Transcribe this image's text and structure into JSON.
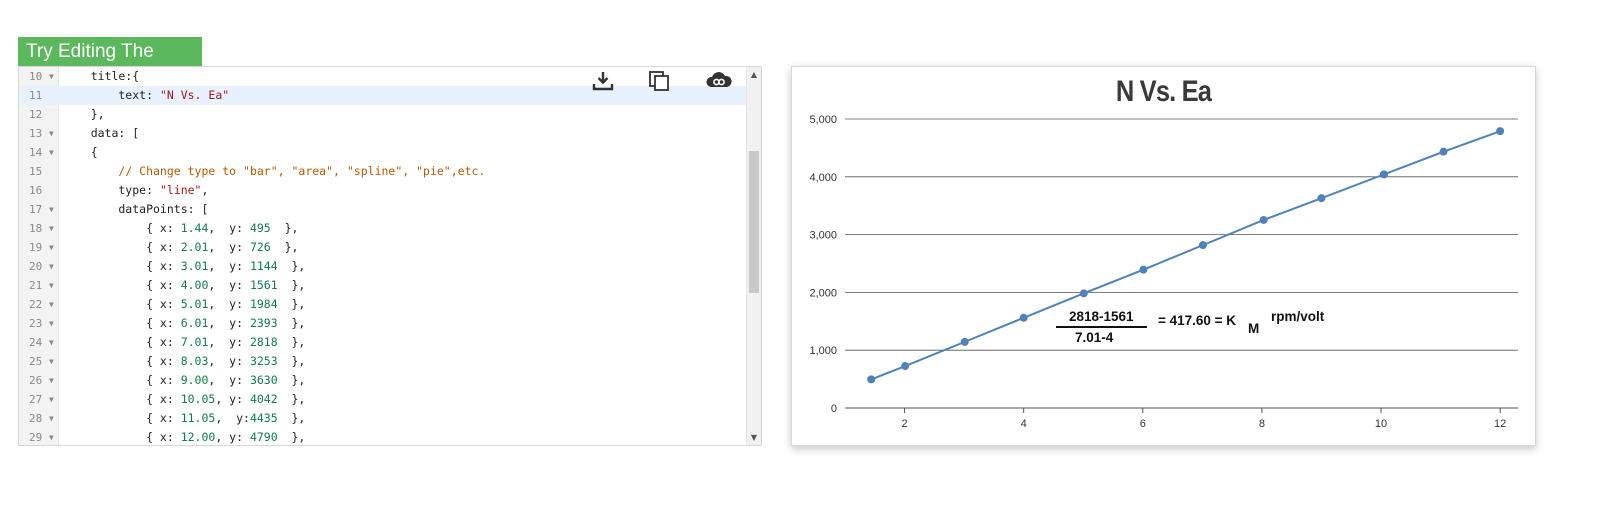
{
  "try_tab": {
    "label": "Try Editing The Code"
  },
  "editor": {
    "toolbar": {
      "download_icon": "download-icon",
      "copy_icon": "copy-icon",
      "share_icon": "share-link-icon"
    },
    "active_line": 11,
    "lines": [
      {
        "n": "10",
        "fold": true,
        "parts": [
          {
            "t": "    title:{",
            "c": ""
          }
        ]
      },
      {
        "n": "11",
        "fold": false,
        "parts": [
          {
            "t": "        text: ",
            "c": ""
          },
          {
            "t": "\"N Vs. Ea\"",
            "c": "str"
          }
        ]
      },
      {
        "n": "12",
        "fold": false,
        "parts": [
          {
            "t": "    },",
            "c": ""
          }
        ]
      },
      {
        "n": "13",
        "fold": true,
        "parts": [
          {
            "t": "    data: [",
            "c": ""
          }
        ]
      },
      {
        "n": "14",
        "fold": true,
        "parts": [
          {
            "t": "    {",
            "c": ""
          }
        ]
      },
      {
        "n": "15",
        "fold": false,
        "parts": [
          {
            "t": "        ",
            "c": ""
          },
          {
            "t": "// Change type to \"bar\", \"area\", \"spline\", \"pie\",etc.",
            "c": "cmt"
          }
        ]
      },
      {
        "n": "16",
        "fold": false,
        "parts": [
          {
            "t": "        type: ",
            "c": ""
          },
          {
            "t": "\"line\"",
            "c": "str"
          },
          {
            "t": ",",
            "c": ""
          }
        ]
      },
      {
        "n": "17",
        "fold": true,
        "parts": [
          {
            "t": "        dataPoints: [",
            "c": ""
          }
        ]
      },
      {
        "n": "18",
        "fold": true,
        "parts": [
          {
            "t": "            { x: ",
            "c": ""
          },
          {
            "t": "1.44",
            "c": "num"
          },
          {
            "t": ",  y: ",
            "c": ""
          },
          {
            "t": "495",
            "c": "num"
          },
          {
            "t": "  },",
            "c": ""
          }
        ]
      },
      {
        "n": "19",
        "fold": true,
        "parts": [
          {
            "t": "            { x: ",
            "c": ""
          },
          {
            "t": "2.01",
            "c": "num"
          },
          {
            "t": ",  y: ",
            "c": ""
          },
          {
            "t": "726",
            "c": "num"
          },
          {
            "t": "  },",
            "c": ""
          }
        ]
      },
      {
        "n": "20",
        "fold": true,
        "parts": [
          {
            "t": "            { x: ",
            "c": ""
          },
          {
            "t": "3.01",
            "c": "num"
          },
          {
            "t": ",  y: ",
            "c": ""
          },
          {
            "t": "1144",
            "c": "num"
          },
          {
            "t": "  },",
            "c": ""
          }
        ]
      },
      {
        "n": "21",
        "fold": true,
        "parts": [
          {
            "t": "            { x: ",
            "c": ""
          },
          {
            "t": "4.00",
            "c": "num"
          },
          {
            "t": ",  y: ",
            "c": ""
          },
          {
            "t": "1561",
            "c": "num"
          },
          {
            "t": "  },",
            "c": ""
          }
        ]
      },
      {
        "n": "22",
        "fold": true,
        "parts": [
          {
            "t": "            { x: ",
            "c": ""
          },
          {
            "t": "5.01",
            "c": "num"
          },
          {
            "t": ",  y: ",
            "c": ""
          },
          {
            "t": "1984",
            "c": "num"
          },
          {
            "t": "  },",
            "c": ""
          }
        ]
      },
      {
        "n": "23",
        "fold": true,
        "parts": [
          {
            "t": "            { x: ",
            "c": ""
          },
          {
            "t": "6.01",
            "c": "num"
          },
          {
            "t": ",  y: ",
            "c": ""
          },
          {
            "t": "2393",
            "c": "num"
          },
          {
            "t": "  },",
            "c": ""
          }
        ]
      },
      {
        "n": "24",
        "fold": true,
        "parts": [
          {
            "t": "            { x: ",
            "c": ""
          },
          {
            "t": "7.01",
            "c": "num"
          },
          {
            "t": ",  y: ",
            "c": ""
          },
          {
            "t": "2818",
            "c": "num"
          },
          {
            "t": "  },",
            "c": ""
          }
        ]
      },
      {
        "n": "25",
        "fold": true,
        "parts": [
          {
            "t": "            { x: ",
            "c": ""
          },
          {
            "t": "8.03",
            "c": "num"
          },
          {
            "t": ",  y: ",
            "c": ""
          },
          {
            "t": "3253",
            "c": "num"
          },
          {
            "t": "  },",
            "c": ""
          }
        ]
      },
      {
        "n": "26",
        "fold": true,
        "parts": [
          {
            "t": "            { x: ",
            "c": ""
          },
          {
            "t": "9.00",
            "c": "num"
          },
          {
            "t": ",  y: ",
            "c": ""
          },
          {
            "t": "3630",
            "c": "num"
          },
          {
            "t": "  },",
            "c": ""
          }
        ]
      },
      {
        "n": "27",
        "fold": true,
        "parts": [
          {
            "t": "            { x: ",
            "c": ""
          },
          {
            "t": "10.05",
            "c": "num"
          },
          {
            "t": ", y: ",
            "c": ""
          },
          {
            "t": "4042",
            "c": "num"
          },
          {
            "t": "  },",
            "c": ""
          }
        ]
      },
      {
        "n": "28",
        "fold": true,
        "parts": [
          {
            "t": "            { x: ",
            "c": ""
          },
          {
            "t": "11.05",
            "c": "num"
          },
          {
            "t": ",  y:",
            "c": ""
          },
          {
            "t": "4435",
            "c": "num"
          },
          {
            "t": "  },",
            "c": ""
          }
        ]
      },
      {
        "n": "29",
        "fold": true,
        "parts": [
          {
            "t": "            { x: ",
            "c": ""
          },
          {
            "t": "12.00",
            "c": "num"
          },
          {
            "t": ", y: ",
            "c": ""
          },
          {
            "t": "4790",
            "c": "num"
          },
          {
            "t": "  },",
            "c": ""
          }
        ]
      }
    ]
  },
  "colors": {
    "tab_green": "#5cb85c",
    "series_line": "#4f81bc",
    "active_line_bg": "#e8f2fe"
  },
  "chart_data": {
    "type": "line",
    "title": "N Vs. Ea",
    "xlabel": "",
    "ylabel": "",
    "xlim": [
      1,
      12.3
    ],
    "ylim": [
      0,
      5000
    ],
    "x_ticks": [
      2,
      4,
      6,
      8,
      10,
      12
    ],
    "y_ticks": [
      0,
      1000,
      2000,
      3000,
      4000,
      5000
    ],
    "y_tick_labels": [
      "0",
      "1,000",
      "2,000",
      "3,000",
      "4,000",
      "5,000"
    ],
    "grid": "horizontal",
    "series": [
      {
        "x": [
          1.44,
          2.01,
          3.01,
          4.0,
          5.01,
          6.01,
          7.01,
          8.03,
          9.0,
          10.05,
          11.05,
          12.0
        ],
        "y": [
          495,
          726,
          1144,
          1561,
          1984,
          2393,
          2818,
          3253,
          3630,
          4042,
          4435,
          4790
        ]
      }
    ],
    "annotation": {
      "numerator": "2818-1561",
      "denominator": "7.01-4",
      "equation": "= 417.60 = K",
      "subscript": "M",
      "unit": "rpm/volt"
    }
  }
}
